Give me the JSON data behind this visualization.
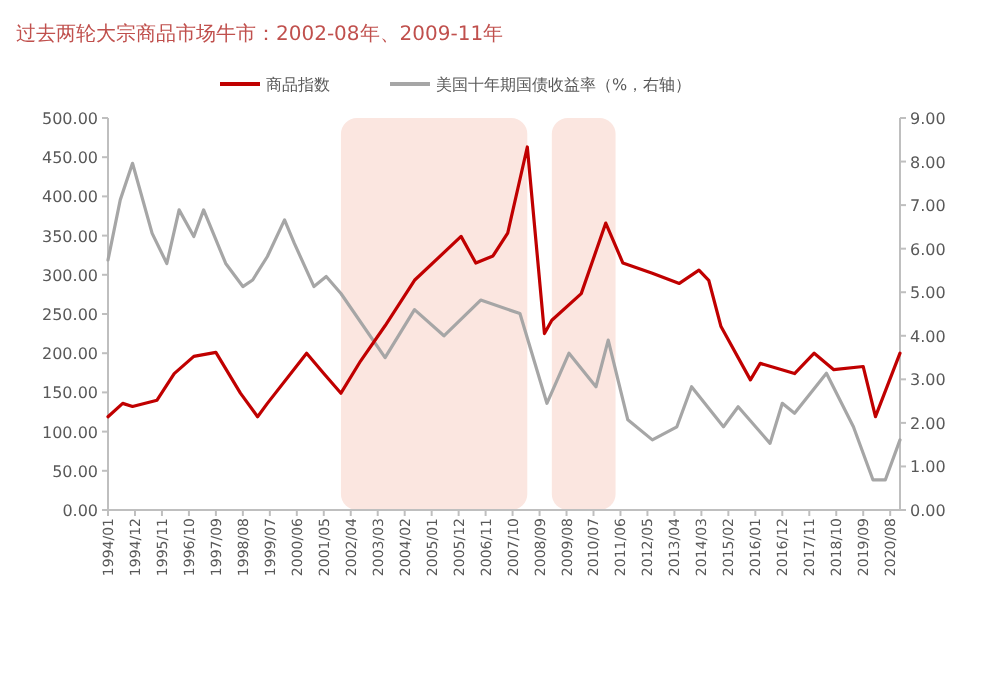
{
  "chart_data": {
    "type": "line",
    "title": "过去两轮大宗商品市场牛市：2002-08年、2009-11年",
    "legend": "top",
    "xlim": [
      "1994-01",
      "2020-12"
    ],
    "xticks": [
      {
        "value": "1994-01",
        "label": "1994/01"
      },
      {
        "value": "1994-12",
        "label": "1994/12"
      },
      {
        "value": "1995-11",
        "label": "1995/11"
      },
      {
        "value": "1996-10",
        "label": "1996/10"
      },
      {
        "value": "1997-09",
        "label": "1997/09"
      },
      {
        "value": "1998-08",
        "label": "1998/08"
      },
      {
        "value": "1999-07",
        "label": "1999/07"
      },
      {
        "value": "2000-06",
        "label": "2000/06"
      },
      {
        "value": "2001-05",
        "label": "2001/05"
      },
      {
        "value": "2002-04",
        "label": "2002/04"
      },
      {
        "value": "2003-03",
        "label": "2003/03"
      },
      {
        "value": "2004-02",
        "label": "2004/02"
      },
      {
        "value": "2005-01",
        "label": "2005/01"
      },
      {
        "value": "2005-12",
        "label": "2005/12"
      },
      {
        "value": "2006-11",
        "label": "2006/11"
      },
      {
        "value": "2007-10",
        "label": "2007/10"
      },
      {
        "value": "2008-09",
        "label": "2008/09"
      },
      {
        "value": "2009-08",
        "label": "2009/08"
      },
      {
        "value": "2010-07",
        "label": "2010/07"
      },
      {
        "value": "2011-06",
        "label": "2011/06"
      },
      {
        "value": "2012-05",
        "label": "2012/05"
      },
      {
        "value": "2013-04",
        "label": "2013/04"
      },
      {
        "value": "2014-03",
        "label": "2014/03"
      },
      {
        "value": "2015-02",
        "label": "2015/02"
      },
      {
        "value": "2016-01",
        "label": "2016/01"
      },
      {
        "value": "2016-12",
        "label": "2016/12"
      },
      {
        "value": "2017-11",
        "label": "2017/11"
      },
      {
        "value": "2018-10",
        "label": "2018/10"
      },
      {
        "value": "2019-09",
        "label": "2019/09"
      },
      {
        "value": "2020-08",
        "label": "2020/08"
      }
    ],
    "ylim": [
      0,
      500
    ],
    "yticks": [
      {
        "value": 0,
        "label": "0.00"
      },
      {
        "value": 50,
        "label": "50.00"
      },
      {
        "value": 100,
        "label": "100.00"
      },
      {
        "value": 150,
        "label": "150.00"
      },
      {
        "value": 200,
        "label": "200.00"
      },
      {
        "value": 250,
        "label": "250.00"
      },
      {
        "value": 300,
        "label": "300.00"
      },
      {
        "value": 350,
        "label": "350.00"
      },
      {
        "value": 400,
        "label": "400.00"
      },
      {
        "value": 450,
        "label": "450.00"
      },
      {
        "value": 500,
        "label": "500.00"
      }
    ],
    "y2lim": [
      0,
      9
    ],
    "y2ticks": [
      {
        "value": 0,
        "label": "0.00"
      },
      {
        "value": 1,
        "label": "1.00"
      },
      {
        "value": 2,
        "label": "2.00"
      },
      {
        "value": 3,
        "label": "3.00"
      },
      {
        "value": 4,
        "label": "4.00"
      },
      {
        "value": 5,
        "label": "5.00"
      },
      {
        "value": 6,
        "label": "6.00"
      },
      {
        "value": 7,
        "label": "7.00"
      },
      {
        "value": 8,
        "label": "8.00"
      },
      {
        "value": 9,
        "label": "9.00"
      }
    ],
    "bands": [
      {
        "axis": "x",
        "from": "2001-12",
        "to": "2008-04",
        "label": null,
        "color": "#fbe6e0"
      },
      {
        "axis": "x",
        "from": "2009-02",
        "to": "2011-04",
        "label": null,
        "color": "#fbe6e0"
      }
    ],
    "series": [
      {
        "name": "商品指数",
        "color": "#c00000",
        "x": [
          "1994-01",
          "1994-07",
          "1994-11",
          "1995-09",
          "1996-04",
          "1996-12",
          "1997-09",
          "1998-07",
          "1999-02",
          "1999-06",
          "2000-10",
          "2001-05",
          "2001-12",
          "2002-08",
          "2003-06",
          "2004-06",
          "2006-01",
          "2006-07",
          "2007-02",
          "2007-08",
          "2008-04",
          "2008-11",
          "2009-02",
          "2010-02",
          "2010-12",
          "2011-07",
          "2012-07",
          "2013-06",
          "2014-02",
          "2014-06",
          "2014-11",
          "2015-11",
          "2016-03",
          "2017-05",
          "2018-01",
          "2018-09",
          "2019-09",
          "2020-02",
          "2020-12"
        ],
        "values": [
          119,
          136,
          132,
          140,
          174,
          196,
          201,
          149,
          119,
          136,
          200,
          174,
          149,
          190,
          235,
          293,
          349,
          315,
          324,
          353,
          463,
          225,
          242,
          276,
          366,
          315,
          302,
          289,
          306,
          293,
          234,
          166,
          187,
          174,
          200,
          179,
          183,
          119,
          200
        ]
      },
      {
        "name": "美国十年期国债收益率（%，右轴）",
        "color": "#a6a6a6",
        "axis": "y2",
        "x": [
          "1994-01",
          "1994-06",
          "1994-11",
          "1995-07",
          "1996-01",
          "1996-06",
          "1996-12",
          "1997-04",
          "1998-01",
          "1998-08",
          "1998-12",
          "1999-06",
          "2000-01",
          "2000-05",
          "2001-01",
          "2001-06",
          "2001-12",
          "2003-06",
          "2004-06",
          "2005-06",
          "2006-09",
          "2008-01",
          "2008-12",
          "2009-09",
          "2010-08",
          "2011-01",
          "2011-09",
          "2012-07",
          "2013-05",
          "2013-11",
          "2014-12",
          "2015-06",
          "2016-07",
          "2016-12",
          "2017-05",
          "2018-06",
          "2019-05",
          "2020-01",
          "2020-06",
          "2020-12"
        ],
        "values": [
          5.74,
          7.12,
          7.96,
          6.35,
          5.66,
          6.89,
          6.28,
          6.89,
          5.66,
          5.13,
          5.28,
          5.82,
          6.66,
          6.12,
          5.13,
          5.36,
          4.97,
          3.5,
          4.6,
          4.0,
          4.82,
          4.51,
          2.45,
          3.6,
          2.83,
          3.9,
          2.07,
          1.61,
          1.91,
          2.83,
          1.91,
          2.37,
          1.53,
          2.45,
          2.22,
          3.14,
          1.91,
          0.69,
          0.69,
          1.61
        ]
      }
    ]
  }
}
